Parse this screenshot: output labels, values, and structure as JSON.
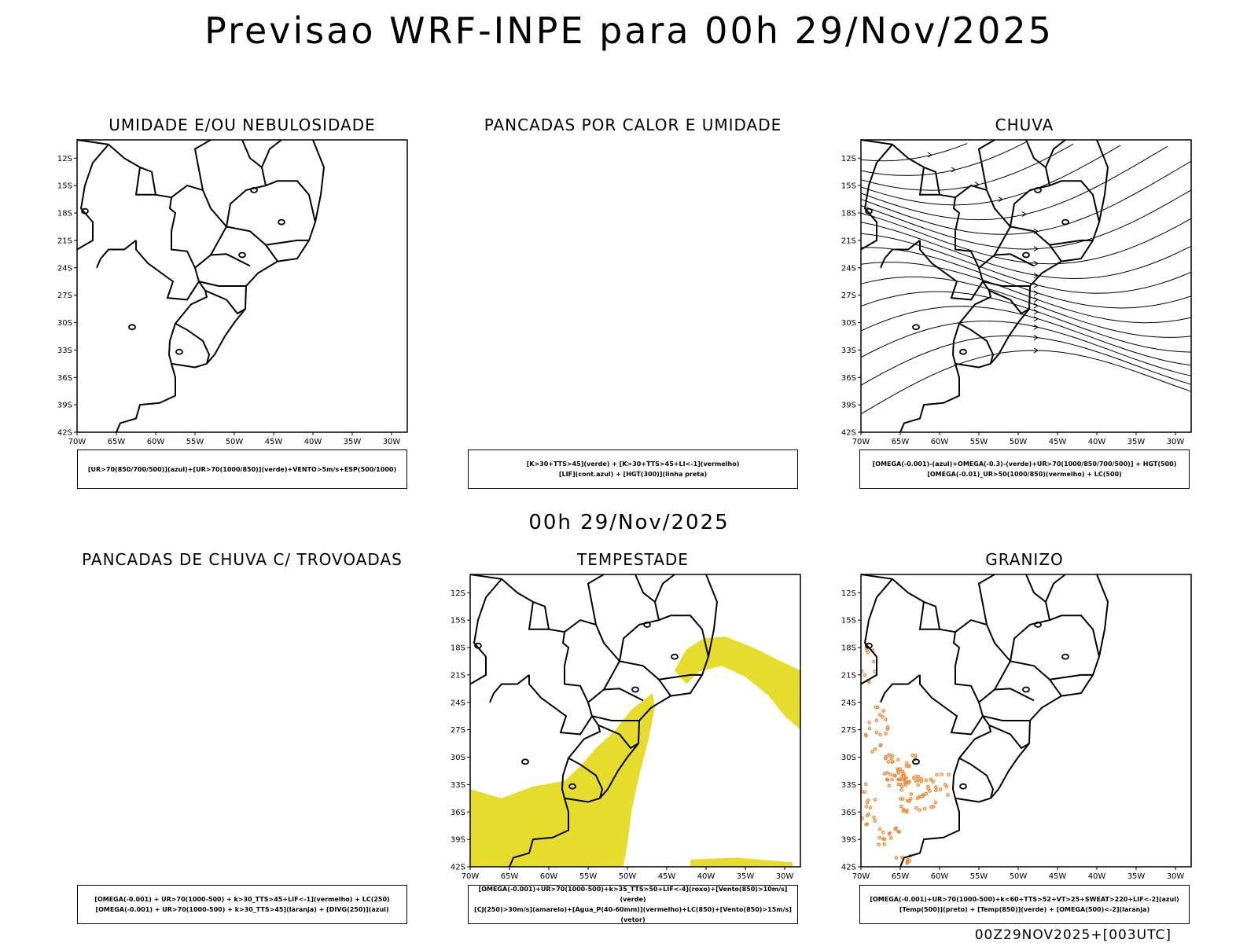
{
  "header": {
    "title": "Previsao WRF-INPE  para 00h 29/Nov/2025",
    "subtitle": "00h 29/Nov/2025"
  },
  "footer": {
    "text": "00Z29NOV2025+[003UTC]"
  },
  "axes": {
    "lat_ticks": [
      "12S",
      "15S",
      "18S",
      "21S",
      "24S",
      "27S",
      "30S",
      "33S",
      "36S",
      "39S",
      "42S"
    ],
    "lon_ticks": [
      "70W",
      "65W",
      "60W",
      "55W",
      "50W",
      "45W",
      "40W",
      "35W",
      "30W"
    ],
    "lat_range": [
      -42,
      -10
    ],
    "lon_range": [
      -70,
      -28
    ]
  },
  "colors": {
    "storm_fill": "#e6dc2e",
    "hail_points": "#f08a3c",
    "boundary": "#000000"
  },
  "panels": [
    {
      "title": "UMIDADE E/OU NEBULOSIDADE",
      "has_map": true,
      "overlay": "none",
      "caption": [
        "[UR>70(850/700/500)](azul)+[UR>70(1000/850)](verde)+VENTO>5m/s+ESP(500/1000)"
      ]
    },
    {
      "title": "PANCADAS POR CALOR E UMIDADE",
      "has_map": false,
      "overlay": "none",
      "caption": [
        "[K>30+TTS>45](verde) + [K>30+TTS>45+LI<-1](vermelho)",
        "[LIF](cont.azul) + [HGT(300)](linha preta)"
      ]
    },
    {
      "title": "CHUVA",
      "has_map": true,
      "overlay": "streamlines",
      "caption": [
        "[OMEGA(-0.001)-(azul)+OMEGA(-0.3)-(verde)+UR>70(1000/850/700/500)] + HGT(500)",
        "[OMEGA(-0.01)_UR>50(1000/850)(vermelho) + LC(500)"
      ]
    },
    {
      "title": "PANCADAS DE CHUVA C/ TROVOADAS",
      "has_map": false,
      "overlay": "none",
      "caption": [
        "[OMEGA(-0.001) + UR>70(1000-500) + k>30_TTS>45+LIF<-1](vermelho) + LC(250)",
        "[OMEGA(-0.001) + UR>70(1000-500) + k>30_TTS>45](laranja) + [DIVG(250)](azul)"
      ]
    },
    {
      "title": "TEMPESTADE",
      "has_map": true,
      "overlay": "storm",
      "caption": [
        "[OMEGA(-0.001)+UR>70(1000-500)+k>35_TTS>50+LIF<-4](roxo)+[Vento(850)>10m/s](verde)",
        "[CJ(250)>30m/s](amarelo)+[Agua_P(40-60mm)](vermelho)+LC(850)+[Vento(850)>15m/s](vetor)"
      ]
    },
    {
      "title": "GRANIZO",
      "has_map": true,
      "overlay": "hail",
      "caption": [
        "[OMEGA(-0.001)+UR>70(1000-500)+k<60+TTS>52+VT>25+SWEAT>220+LIF<-2](azul)",
        "[Temp(500)](preto) + [Temp(850)](verde) + [OMEGA(500)<-2](laranja)"
      ]
    }
  ]
}
